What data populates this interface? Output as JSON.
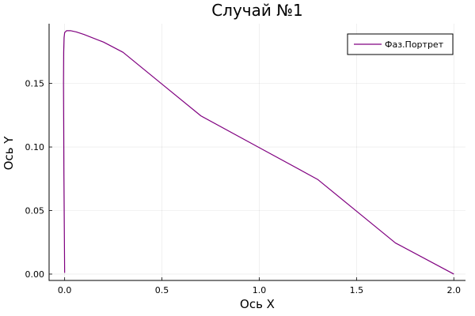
{
  "chart_data": {
    "type": "line",
    "title": "Случай №1",
    "xlabel": "Ось X",
    "ylabel": "Ось Y",
    "xlim": [
      -0.08,
      2.06
    ],
    "ylim": [
      -0.005,
      0.197
    ],
    "xticks": [
      0.0,
      0.5,
      1.0,
      1.5,
      2.0
    ],
    "xtick_labels": [
      "0.0",
      "0.5",
      "1.0",
      "1.5",
      "2.0"
    ],
    "yticks": [
      0.0,
      0.05,
      0.1,
      0.15
    ],
    "ytick_labels": [
      "0.00",
      "0.05",
      "0.10",
      "0.15"
    ],
    "grid": true,
    "legend_position": "top-right",
    "series": [
      {
        "name": "Фаз.Портрет",
        "color": "#800080",
        "x": [
          0.0,
          -0.002,
          -0.004,
          -0.005,
          -0.006,
          -0.005,
          -0.003,
          0.0,
          0.01,
          0.03,
          0.06,
          0.1,
          0.2,
          0.3,
          0.5,
          0.7,
          1.0,
          1.3,
          1.5,
          1.7,
          2.0
        ],
        "y": [
          0.001,
          0.04,
          0.08,
          0.12,
          0.15,
          0.175,
          0.186,
          0.19,
          0.1915,
          0.1915,
          0.1905,
          0.1885,
          0.1825,
          0.1745,
          0.1495,
          0.1245,
          0.0995,
          0.0745,
          0.0495,
          0.0245,
          0.0
        ]
      }
    ]
  }
}
